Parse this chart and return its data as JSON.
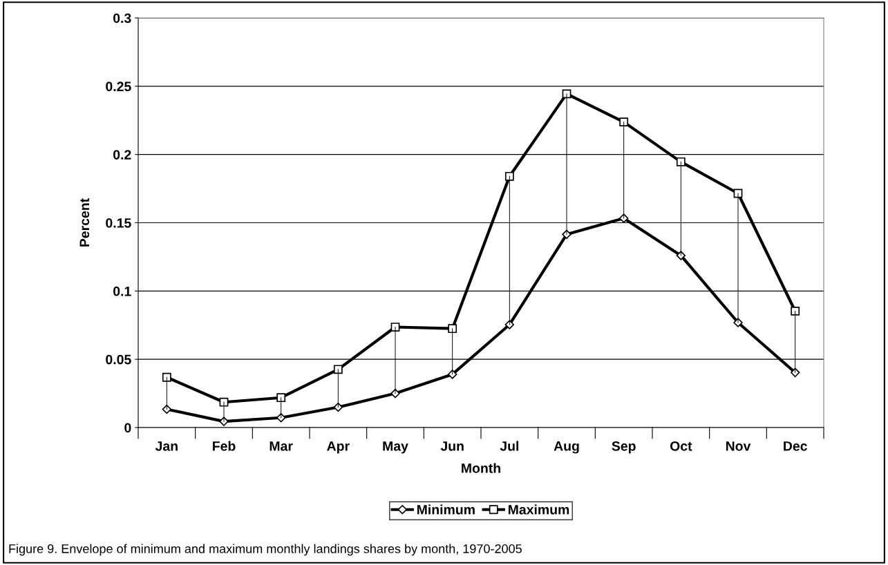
{
  "chart_data": {
    "type": "line",
    "xlabel": "Month",
    "ylabel": "Percent",
    "categories": [
      "Jan",
      "Feb",
      "Mar",
      "Apr",
      "May",
      "Jun",
      "Jul",
      "Aug",
      "Sep",
      "Oct",
      "Nov",
      "Dec"
    ],
    "series": [
      {
        "name": "Minimum",
        "color": "#000000",
        "marker": "diamond",
        "values": [
          0.0134,
          0.0045,
          0.0072,
          0.0149,
          0.025,
          0.039,
          0.0754,
          0.1415,
          0.1533,
          0.126,
          0.0769,
          0.0403
        ],
        "errors": [
          [
            0.0134,
            0.0368
          ],
          [
            0.0045,
            0.0186
          ],
          [
            0.0072,
            0.0219
          ],
          [
            0.0149,
            0.0426
          ],
          [
            0.025,
            0.0736
          ],
          [
            0.039,
            0.0725
          ],
          [
            0.0754,
            0.184
          ],
          [
            0.1415,
            0.2444
          ],
          [
            0.1533,
            0.2238
          ],
          [
            0.126,
            0.1946
          ],
          [
            0.0769,
            0.1715
          ],
          [
            0.0403,
            0.0853
          ]
        ]
      },
      {
        "name": "Maximum",
        "color": "#000000",
        "marker": "square",
        "values": [
          0.0368,
          0.0186,
          0.0219,
          0.0426,
          0.0736,
          0.0725,
          0.184,
          0.2444,
          0.2238,
          0.1946,
          0.1715,
          0.0853
        ]
      }
    ],
    "ylim": [
      0,
      0.3
    ],
    "yticks": [
      0,
      0.05,
      0.1,
      0.15,
      0.2,
      0.25,
      0.3
    ],
    "grid": "y",
    "legend": "bottom",
    "line_style": "solid",
    "annotations": [
      "Figure 9. Envelope of minimum and maximum monthly landings shares by month, 1970-2005"
    ]
  }
}
